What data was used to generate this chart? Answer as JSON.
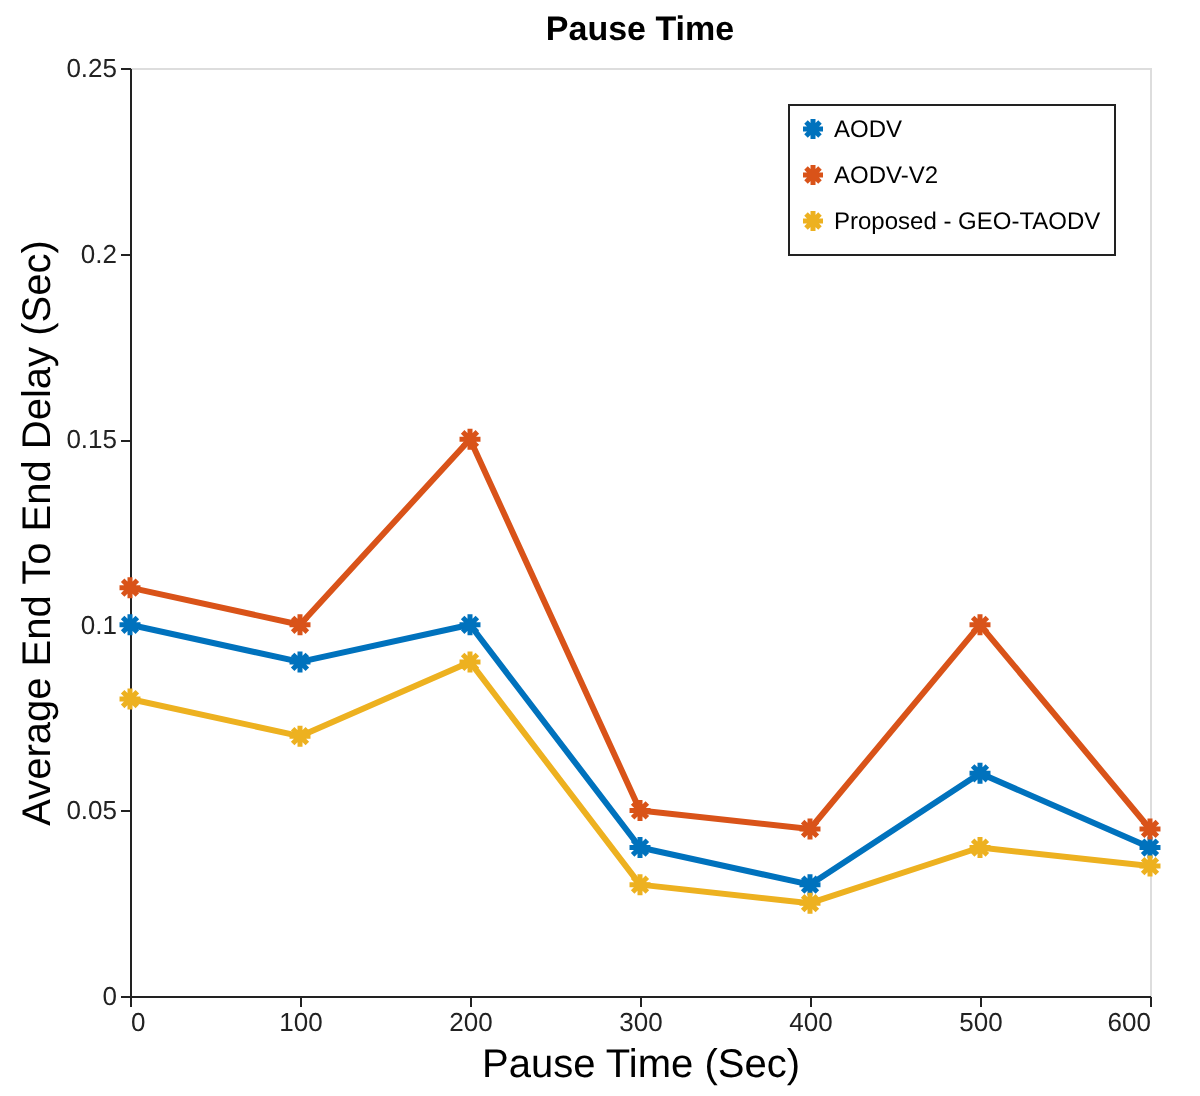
{
  "chart_data": {
    "type": "line",
    "title": "Pause Time",
    "xlabel": "Pause Time (Sec)",
    "ylabel": "Average End To End Delay (Sec)",
    "x": [
      0,
      100,
      200,
      300,
      400,
      500,
      600
    ],
    "xlim": [
      0,
      600
    ],
    "xticks": [
      0,
      100,
      200,
      300,
      400,
      500,
      600
    ],
    "ylim": [
      0,
      0.25
    ],
    "yticks": [
      0,
      0.05,
      0.1,
      0.15,
      0.2,
      0.25
    ],
    "grid": false,
    "legend": "top right",
    "marker": "cross",
    "line_style": "solid",
    "series": [
      {
        "name": "AODV",
        "color": "#0072bd",
        "values": [
          0.1,
          0.09,
          0.1,
          0.04,
          0.03,
          0.06,
          0.04
        ]
      },
      {
        "name": "AODV-V2",
        "color": "#d95319",
        "values": [
          0.11,
          0.1,
          0.15,
          0.05,
          0.045,
          0.1,
          0.045
        ]
      },
      {
        "name": "Proposed - GEO-TAODV",
        "color": "#edb120",
        "values": [
          0.08,
          0.07,
          0.09,
          0.03,
          0.025,
          0.04,
          0.035
        ]
      }
    ]
  }
}
